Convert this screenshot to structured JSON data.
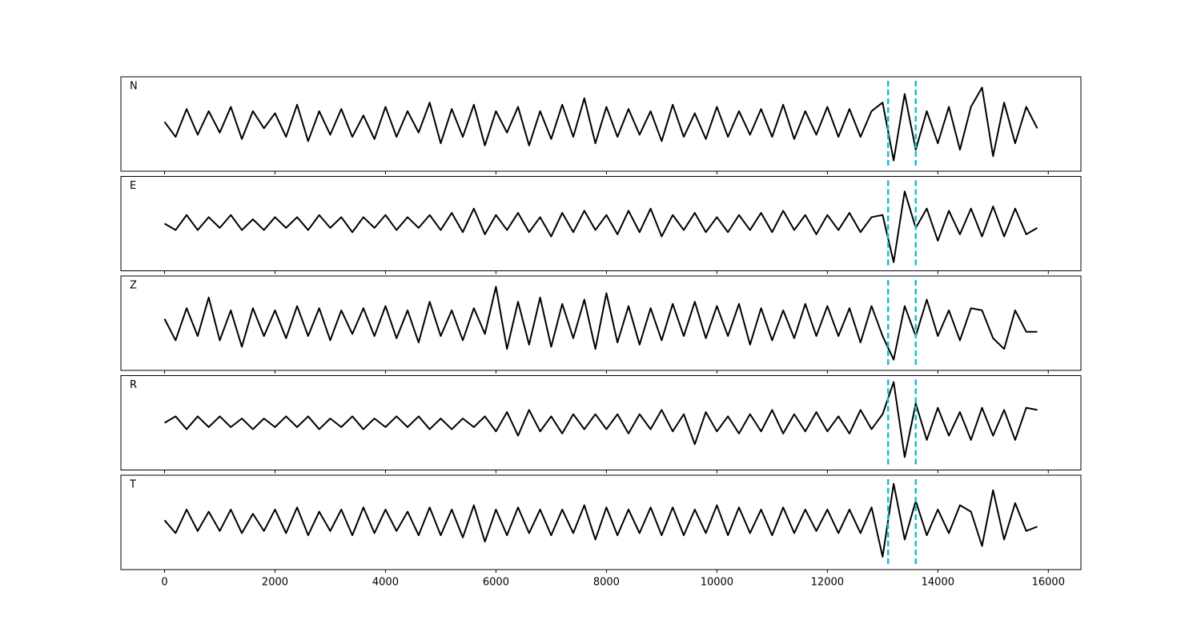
{
  "chart_data": {
    "type": "line",
    "x": [
      0,
      200,
      400,
      600,
      800,
      1000,
      1200,
      1400,
      1600,
      1800,
      2000,
      2200,
      2400,
      2600,
      2800,
      3000,
      3200,
      3400,
      3600,
      3800,
      4000,
      4200,
      4400,
      4600,
      4800,
      5000,
      5200,
      5400,
      5600,
      5800,
      6000,
      6200,
      6400,
      6600,
      6800,
      7000,
      7200,
      7400,
      7600,
      7800,
      8000,
      8200,
      8400,
      8600,
      8800,
      9000,
      9200,
      9400,
      9600,
      9800,
      10000,
      10200,
      10400,
      10600,
      10800,
      11000,
      11200,
      11400,
      11600,
      11800,
      12000,
      12200,
      12400,
      12600,
      12800,
      13000,
      13200,
      13400,
      13600,
      13800,
      14000,
      14200,
      14400,
      14600,
      14800,
      15000,
      15200,
      15400,
      15600,
      15800
    ],
    "series": [
      {
        "name": "N",
        "color": "#000000",
        "values": [
          0.05,
          -0.3,
          0.35,
          -0.25,
          0.3,
          -0.2,
          0.4,
          -0.35,
          0.3,
          -0.1,
          0.25,
          -0.3,
          0.45,
          -0.4,
          0.3,
          -0.25,
          0.35,
          -0.3,
          0.2,
          -0.35,
          0.4,
          -0.3,
          0.3,
          -0.2,
          0.5,
          -0.45,
          0.35,
          -0.3,
          0.45,
          -0.5,
          0.3,
          -0.2,
          0.4,
          -0.5,
          0.3,
          -0.35,
          0.45,
          -0.3,
          0.6,
          -0.45,
          0.4,
          -0.3,
          0.35,
          -0.25,
          0.3,
          -0.4,
          0.45,
          -0.3,
          0.25,
          -0.35,
          0.4,
          -0.3,
          0.3,
          -0.25,
          0.35,
          -0.3,
          0.45,
          -0.35,
          0.3,
          -0.25,
          0.4,
          -0.3,
          0.35,
          -0.3,
          0.3,
          0.5,
          -0.85,
          0.7,
          -0.6,
          0.3,
          -0.45,
          0.4,
          -0.6,
          0.4,
          0.85,
          -0.75,
          0.5,
          -0.45,
          0.4,
          -0.1
        ]
      },
      {
        "name": "E",
        "color": "#000000",
        "values": [
          0.0,
          -0.15,
          0.2,
          -0.15,
          0.15,
          -0.1,
          0.2,
          -0.15,
          0.1,
          -0.15,
          0.15,
          -0.1,
          0.15,
          -0.15,
          0.2,
          -0.1,
          0.15,
          -0.2,
          0.15,
          -0.1,
          0.2,
          -0.15,
          0.15,
          -0.1,
          0.2,
          -0.15,
          0.25,
          -0.2,
          0.35,
          -0.25,
          0.2,
          -0.15,
          0.25,
          -0.2,
          0.15,
          -0.3,
          0.25,
          -0.2,
          0.3,
          -0.15,
          0.2,
          -0.25,
          0.3,
          -0.2,
          0.35,
          -0.3,
          0.2,
          -0.15,
          0.25,
          -0.2,
          0.15,
          -0.2,
          0.2,
          -0.15,
          0.25,
          -0.2,
          0.3,
          -0.15,
          0.2,
          -0.25,
          0.2,
          -0.15,
          0.25,
          -0.2,
          0.15,
          0.2,
          -0.9,
          0.75,
          -0.1,
          0.35,
          -0.4,
          0.3,
          -0.25,
          0.35,
          -0.3,
          0.4,
          -0.3,
          0.35,
          -0.25,
          -0.1
        ]
      },
      {
        "name": "Z",
        "color": "#000000",
        "values": [
          0.1,
          -0.4,
          0.35,
          -0.3,
          0.6,
          -0.4,
          0.3,
          -0.55,
          0.35,
          -0.3,
          0.3,
          -0.35,
          0.4,
          -0.3,
          0.35,
          -0.4,
          0.3,
          -0.25,
          0.35,
          -0.3,
          0.4,
          -0.35,
          0.3,
          -0.45,
          0.5,
          -0.3,
          0.3,
          -0.4,
          0.35,
          -0.25,
          0.85,
          -0.6,
          0.5,
          -0.5,
          0.6,
          -0.55,
          0.45,
          -0.35,
          0.55,
          -0.6,
          0.7,
          -0.45,
          0.4,
          -0.5,
          0.35,
          -0.4,
          0.45,
          -0.3,
          0.5,
          -0.35,
          0.4,
          -0.3,
          0.45,
          -0.5,
          0.35,
          -0.4,
          0.3,
          -0.35,
          0.45,
          -0.3,
          0.4,
          -0.3,
          0.35,
          -0.45,
          0.4,
          -0.3,
          -0.85,
          0.4,
          -0.3,
          0.55,
          -0.3,
          0.3,
          -0.4,
          0.35,
          0.3,
          -0.35,
          -0.6,
          0.3,
          -0.2,
          -0.2
        ]
      },
      {
        "name": "R",
        "color": "#000000",
        "values": [
          0.0,
          0.15,
          -0.15,
          0.15,
          -0.1,
          0.15,
          -0.1,
          0.1,
          -0.15,
          0.1,
          -0.1,
          0.15,
          -0.1,
          0.15,
          -0.15,
          0.1,
          -0.1,
          0.15,
          -0.15,
          0.1,
          -0.1,
          0.15,
          -0.1,
          0.15,
          -0.15,
          0.1,
          -0.15,
          0.1,
          -0.1,
          0.15,
          -0.2,
          0.25,
          -0.3,
          0.3,
          -0.2,
          0.15,
          -0.25,
          0.2,
          -0.15,
          0.2,
          -0.15,
          0.2,
          -0.25,
          0.2,
          -0.15,
          0.3,
          -0.2,
          0.2,
          -0.5,
          0.25,
          -0.2,
          0.15,
          -0.25,
          0.2,
          -0.2,
          0.3,
          -0.25,
          0.2,
          -0.2,
          0.25,
          -0.2,
          0.15,
          -0.25,
          0.3,
          -0.15,
          0.2,
          0.95,
          -0.8,
          0.45,
          -0.4,
          0.35,
          -0.3,
          0.25,
          -0.4,
          0.35,
          -0.3,
          0.3,
          -0.4,
          0.35,
          0.3
        ]
      },
      {
        "name": "T",
        "color": "#000000",
        "values": [
          0.05,
          -0.25,
          0.3,
          -0.2,
          0.25,
          -0.2,
          0.3,
          -0.25,
          0.2,
          -0.2,
          0.3,
          -0.25,
          0.35,
          -0.3,
          0.25,
          -0.2,
          0.3,
          -0.3,
          0.35,
          -0.25,
          0.3,
          -0.2,
          0.25,
          -0.3,
          0.35,
          -0.3,
          0.3,
          -0.35,
          0.4,
          -0.45,
          0.3,
          -0.3,
          0.35,
          -0.25,
          0.3,
          -0.3,
          0.3,
          -0.25,
          0.4,
          -0.4,
          0.35,
          -0.3,
          0.3,
          -0.25,
          0.35,
          -0.3,
          0.35,
          -0.3,
          0.3,
          -0.25,
          0.4,
          -0.3,
          0.35,
          -0.25,
          0.3,
          -0.3,
          0.35,
          -0.25,
          0.3,
          -0.2,
          0.3,
          -0.25,
          0.3,
          -0.25,
          0.35,
          -0.8,
          0.9,
          -0.4,
          0.5,
          -0.3,
          0.3,
          -0.25,
          0.4,
          0.25,
          -0.55,
          0.75,
          -0.4,
          0.45,
          -0.2,
          -0.1
        ]
      }
    ],
    "xlim": [
      -790,
      16590
    ],
    "xticks": [
      0,
      2000,
      4000,
      6000,
      8000,
      10000,
      12000,
      14000,
      16000
    ],
    "ylim": [
      -1.1,
      1.1
    ],
    "vlines": [
      13100,
      13600
    ],
    "vline_color": "#17becf"
  }
}
